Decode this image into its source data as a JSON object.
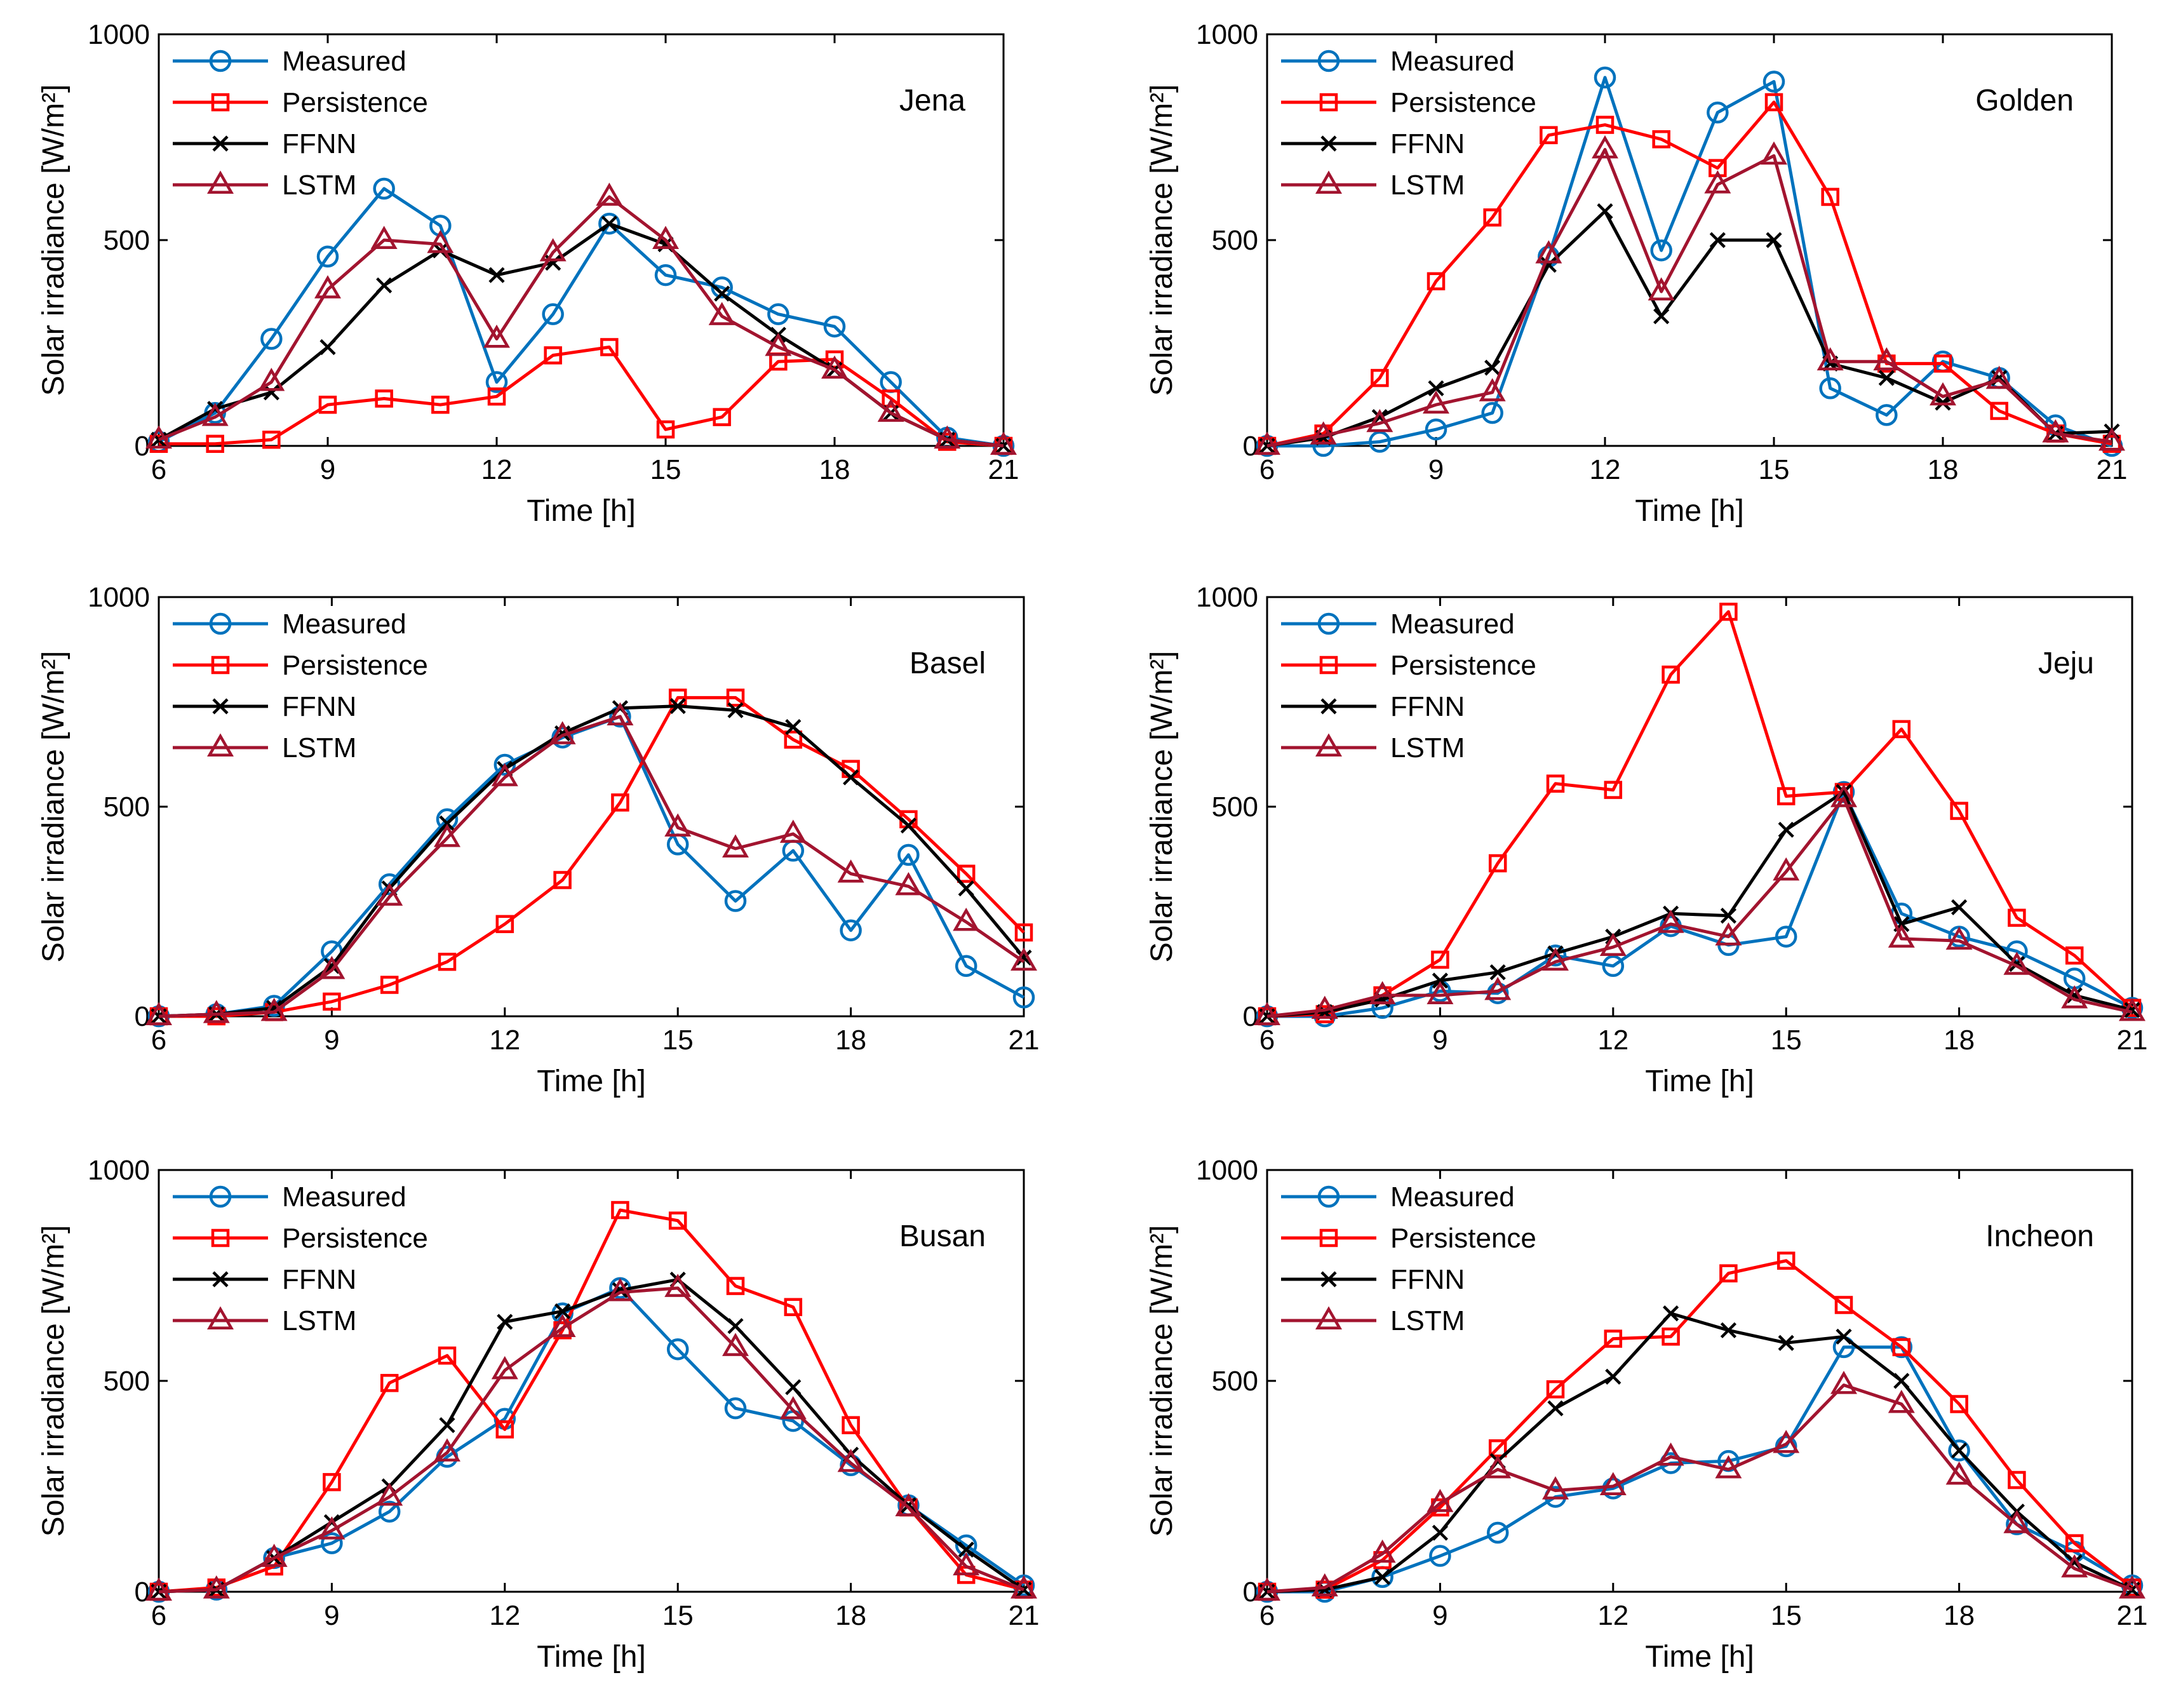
{
  "series_styles": {
    "Measured": {
      "color": "#0072BD",
      "marker": "circle"
    },
    "Persistence": {
      "color": "#FF0000",
      "marker": "square"
    },
    "FFNN": {
      "color": "#000000",
      "marker": "x"
    },
    "LSTM": {
      "color": "#A2142F",
      "marker": "triangle"
    }
  },
  "chart_data": [
    {
      "type": "line",
      "title": "Jena",
      "xlabel": "Time [h]",
      "ylabel": "Solar irradiance [W/m²]",
      "xlim": [
        6,
        21
      ],
      "ylim": [
        0,
        1000
      ],
      "xticks": [
        "6",
        "9",
        "12",
        "15",
        "18",
        "21"
      ],
      "yticks": [
        "0",
        "500",
        "1000"
      ],
      "x": [
        6,
        7,
        8,
        9,
        10,
        11,
        12,
        13,
        14,
        15,
        16,
        17,
        18,
        19,
        20,
        21
      ],
      "series": [
        {
          "name": "Measured",
          "values": [
            10,
            80,
            260,
            460,
            625,
            535,
            155,
            320,
            540,
            415,
            385,
            320,
            290,
            155,
            20,
            0
          ]
        },
        {
          "name": "Persistence",
          "values": [
            5,
            5,
            15,
            100,
            115,
            100,
            120,
            220,
            240,
            40,
            70,
            205,
            210,
            115,
            10,
            0
          ]
        },
        {
          "name": "FFNN",
          "values": [
            15,
            90,
            130,
            240,
            390,
            475,
            415,
            445,
            540,
            490,
            370,
            270,
            185,
            80,
            15,
            0
          ]
        },
        {
          "name": "LSTM",
          "values": [
            15,
            70,
            155,
            380,
            500,
            490,
            260,
            470,
            605,
            500,
            315,
            240,
            185,
            80,
            15,
            0
          ]
        }
      ]
    },
    {
      "type": "line",
      "title": "Golden",
      "xlabel": "Time [h]",
      "ylabel": "Solar irradiance [W/m²]",
      "xlim": [
        6,
        21
      ],
      "ylim": [
        0,
        1000
      ],
      "xticks": [
        "6",
        "9",
        "12",
        "15",
        "18",
        "21"
      ],
      "yticks": [
        "0",
        "500",
        "1000"
      ],
      "x": [
        6,
        7,
        8,
        9,
        10,
        11,
        12,
        13,
        14,
        15,
        16,
        17,
        18,
        19,
        20,
        21
      ],
      "series": [
        {
          "name": "Measured",
          "values": [
            0,
            0,
            10,
            40,
            80,
            460,
            895,
            475,
            810,
            885,
            140,
            75,
            205,
            165,
            50,
            0
          ]
        },
        {
          "name": "Persistence",
          "values": [
            0,
            30,
            165,
            400,
            555,
            755,
            780,
            745,
            675,
            835,
            605,
            200,
            200,
            85,
            30,
            5
          ]
        },
        {
          "name": "FFNN",
          "values": [
            0,
            20,
            70,
            140,
            190,
            440,
            570,
            315,
            500,
            500,
            200,
            165,
            105,
            165,
            30,
            35
          ]
        },
        {
          "name": "LSTM",
          "values": [
            0,
            25,
            55,
            100,
            130,
            465,
            720,
            375,
            635,
            705,
            205,
            205,
            120,
            160,
            30,
            10
          ]
        }
      ]
    },
    {
      "type": "line",
      "title": "Basel",
      "xlabel": "Time [h]",
      "ylabel": "Solar irradiance [W/m²]",
      "xlim": [
        6,
        21
      ],
      "ylim": [
        0,
        1000
      ],
      "xticks": [
        "6",
        "9",
        "12",
        "15",
        "18",
        "21"
      ],
      "yticks": [
        "0",
        "500",
        "1000"
      ],
      "x": [
        6,
        7,
        8,
        9,
        10,
        11,
        12,
        13,
        14,
        15,
        16,
        17,
        18,
        19,
        20,
        21
      ],
      "series": [
        {
          "name": "Measured",
          "values": [
            0,
            5,
            25,
            155,
            315,
            470,
            600,
            665,
            715,
            410,
            275,
            395,
            205,
            385,
            120,
            45
          ]
        },
        {
          "name": "Persistence",
          "values": [
            0,
            0,
            10,
            35,
            75,
            130,
            220,
            325,
            510,
            760,
            760,
            660,
            590,
            470,
            340,
            200
          ]
        },
        {
          "name": "FFNN",
          "values": [
            0,
            5,
            20,
            120,
            305,
            460,
            590,
            675,
            735,
            740,
            730,
            690,
            570,
            455,
            305,
            140
          ]
        },
        {
          "name": "LSTM",
          "values": [
            0,
            5,
            10,
            110,
            285,
            425,
            570,
            670,
            715,
            450,
            400,
            435,
            340,
            310,
            225,
            130
          ]
        }
      ]
    },
    {
      "type": "line",
      "title": "Jeju",
      "xlabel": "Time [h]",
      "ylabel": "Solar irradiance [W/m²]",
      "xlim": [
        6,
        21
      ],
      "ylim": [
        0,
        1000
      ],
      "xticks": [
        "6",
        "9",
        "12",
        "15",
        "18",
        "21"
      ],
      "yticks": [
        "0",
        "500",
        "1000"
      ],
      "x": [
        6,
        7,
        8,
        9,
        10,
        11,
        12,
        13,
        14,
        15,
        16,
        17,
        18,
        19,
        20,
        21
      ],
      "series": [
        {
          "name": "Measured",
          "values": [
            0,
            0,
            20,
            60,
            55,
            145,
            120,
            215,
            170,
            190,
            535,
            245,
            190,
            155,
            90,
            20
          ]
        },
        {
          "name": "Persistence",
          "values": [
            0,
            5,
            50,
            135,
            365,
            555,
            540,
            815,
            965,
            525,
            535,
            685,
            490,
            235,
            145,
            20
          ]
        },
        {
          "name": "FFNN",
          "values": [
            0,
            10,
            40,
            85,
            105,
            150,
            190,
            245,
            240,
            445,
            535,
            220,
            260,
            125,
            50,
            15
          ]
        },
        {
          "name": "LSTM",
          "values": [
            0,
            15,
            50,
            50,
            60,
            130,
            165,
            220,
            190,
            345,
            520,
            185,
            180,
            120,
            40,
            10
          ]
        }
      ]
    },
    {
      "type": "line",
      "title": "Busan",
      "xlabel": "Time [h]",
      "ylabel": "Solar irradiance [W/m²]",
      "xlim": [
        6,
        21
      ],
      "ylim": [
        0,
        1000
      ],
      "xticks": [
        "6",
        "9",
        "12",
        "15",
        "18",
        "21"
      ],
      "yticks": [
        "0",
        "500",
        "1000"
      ],
      "x": [
        6,
        7,
        8,
        9,
        10,
        11,
        12,
        13,
        14,
        15,
        16,
        17,
        18,
        19,
        20,
        21
      ],
      "series": [
        {
          "name": "Measured",
          "values": [
            0,
            5,
            80,
            115,
            190,
            320,
            410,
            660,
            720,
            575,
            435,
            405,
            300,
            205,
            110,
            15
          ]
        },
        {
          "name": "Persistence",
          "values": [
            0,
            10,
            60,
            260,
            495,
            560,
            385,
            620,
            905,
            880,
            725,
            675,
            395,
            200,
            40,
            5
          ]
        },
        {
          "name": "FFNN",
          "values": [
            0,
            5,
            80,
            165,
            250,
            395,
            640,
            665,
            715,
            740,
            630,
            485,
            325,
            205,
            100,
            5
          ]
        },
        {
          "name": "LSTM",
          "values": [
            0,
            5,
            80,
            145,
            225,
            330,
            525,
            625,
            710,
            720,
            580,
            430,
            305,
            200,
            60,
            5
          ]
        }
      ]
    },
    {
      "type": "line",
      "title": "Incheon",
      "xlabel": "Time [h]",
      "ylabel": "Solar irradiance [W/m²]",
      "xlim": [
        6,
        21
      ],
      "ylim": [
        0,
        1000
      ],
      "xticks": [
        "6",
        "9",
        "12",
        "15",
        "18",
        "21"
      ],
      "yticks": [
        "0",
        "500",
        "1000"
      ],
      "x": [
        6,
        7,
        8,
        9,
        10,
        11,
        12,
        13,
        14,
        15,
        16,
        17,
        18,
        19,
        20,
        21
      ],
      "series": [
        {
          "name": "Measured",
          "values": [
            0,
            0,
            35,
            85,
            140,
            225,
            245,
            305,
            310,
            345,
            580,
            580,
            335,
            160,
            95,
            15
          ]
        },
        {
          "name": "Persistence",
          "values": [
            0,
            5,
            75,
            200,
            340,
            480,
            600,
            605,
            755,
            785,
            680,
            580,
            445,
            265,
            115,
            10
          ]
        },
        {
          "name": "FFNN",
          "values": [
            0,
            5,
            35,
            140,
            310,
            435,
            510,
            660,
            620,
            590,
            605,
            500,
            335,
            190,
            70,
            5
          ]
        },
        {
          "name": "LSTM",
          "values": [
            0,
            10,
            90,
            210,
            290,
            240,
            250,
            320,
            290,
            350,
            490,
            445,
            275,
            160,
            55,
            5
          ]
        }
      ]
    }
  ]
}
